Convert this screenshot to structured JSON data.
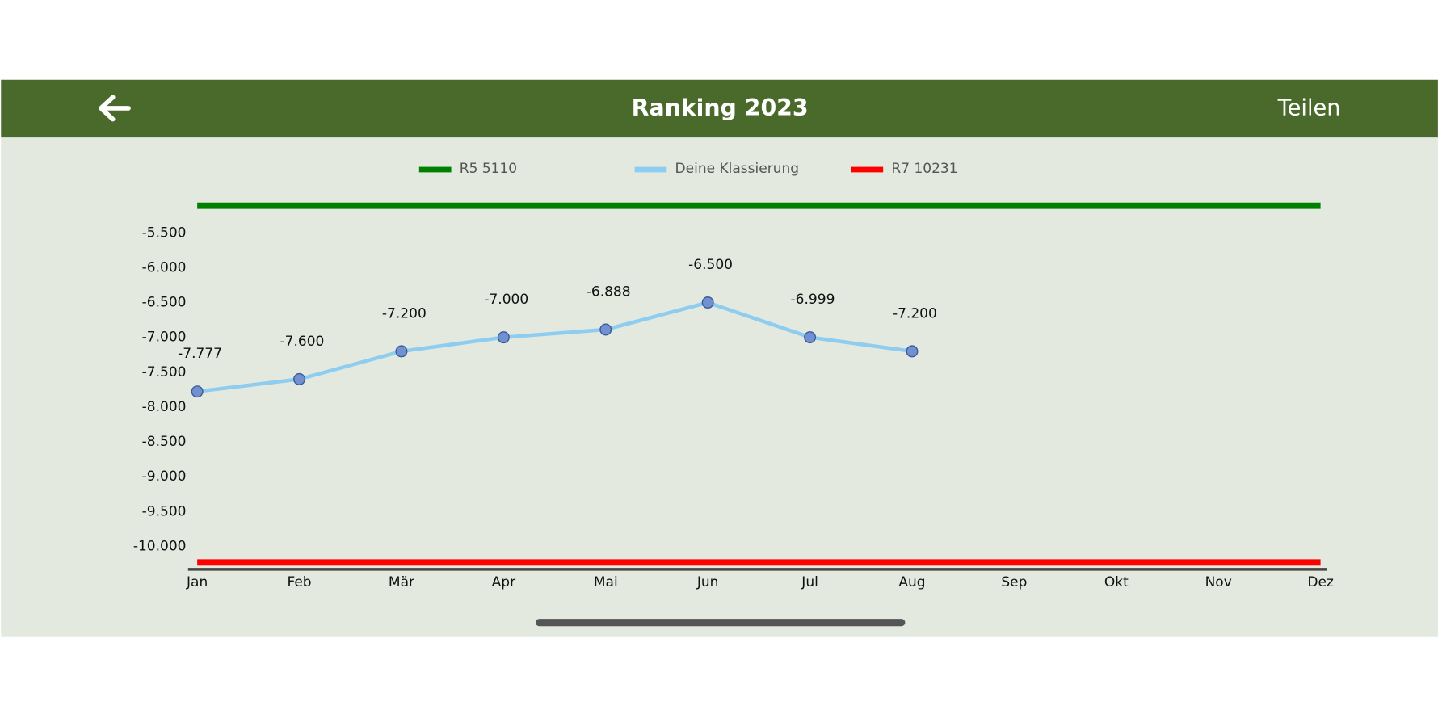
{
  "header": {
    "title": "Ranking 2023",
    "action": "Teilen"
  },
  "chart_data": {
    "type": "line",
    "categories": [
      "Jan",
      "Feb",
      "Mär",
      "Apr",
      "Mai",
      "Jun",
      "Jul",
      "Aug",
      "Sep",
      "Okt",
      "Nov",
      "Dez"
    ],
    "series": [
      {
        "name": "R5 5110",
        "color": "#008000",
        "values": [
          -5110,
          -5110,
          -5110,
          -5110,
          -5110,
          -5110,
          -5110,
          -5110,
          -5110,
          -5110,
          -5110,
          -5110
        ]
      },
      {
        "name": "Deine Klassierung",
        "color": "#8ecdf0",
        "markers": true,
        "values": [
          -7777,
          -7600,
          -7200,
          -7000,
          -6888,
          -6500,
          -6999,
          -7200,
          null,
          null,
          null,
          null
        ],
        "value_labels": [
          "-7.777",
          "-7.600",
          "-7.200",
          "-7.000",
          "-6.888",
          "-6.500",
          "-6.999",
          "-7.200",
          null,
          null,
          null,
          null
        ]
      },
      {
        "name": "R7 10231",
        "color": "#ff0000",
        "values": [
          -10231,
          -10231,
          -10231,
          -10231,
          -10231,
          -10231,
          -10231,
          -10231,
          -10231,
          -10231,
          -10231,
          -10231
        ]
      }
    ],
    "ylim": [
      -10330,
      -5000
    ],
    "yticks": [
      {
        "value": -5500,
        "label": "-5.500"
      },
      {
        "value": -6000,
        "label": "-6.000"
      },
      {
        "value": -6500,
        "label": "-6.500"
      },
      {
        "value": -7000,
        "label": "-7.000"
      },
      {
        "value": -7500,
        "label": "-7.500"
      },
      {
        "value": -8000,
        "label": "-8.000"
      },
      {
        "value": -8500,
        "label": "-8.500"
      },
      {
        "value": -9000,
        "label": "-9.000"
      },
      {
        "value": -9500,
        "label": "-9.500"
      },
      {
        "value": -10000,
        "label": "-10.000"
      }
    ],
    "grid": false
  }
}
